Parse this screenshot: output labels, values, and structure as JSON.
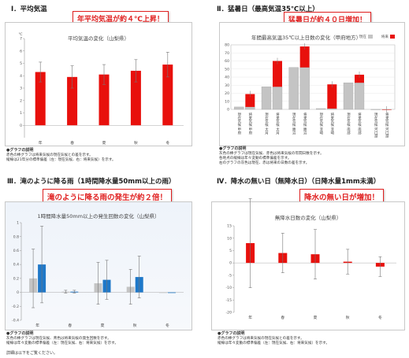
{
  "sections": [
    {
      "title": "Ⅰ．平均気温",
      "callout": "年平均気温が約４℃上昇！"
    },
    {
      "title": "Ⅱ．猛暑日（最高気温35℃以上）",
      "callout": "猛暑日が約４０日増加！"
    },
    {
      "title": "Ⅲ．滝のように降る雨（1時間降水量50mm以上の雨）",
      "callout": "滝のように降る雨の発生が約２倍！"
    },
    {
      "title": "Ⅳ．降水の無い日（無降水日）（日降水量1mm未満）",
      "callout": "降水の無い日が増加！"
    }
  ],
  "notes": [
    {
      "heading": "●グラフの説明",
      "lines": [
        "赤色の棒グラフは将来気候の現在気候との差を示す。",
        "縦線は21年分の標準偏差（左：現在気候、右：将来気候）を示す。"
      ]
    },
    {
      "heading": "●グラフの説明",
      "lines": [
        "灰色の棒グラフは現在気候、赤色は将来気候の年間日数を示す。",
        "各地点の縦線は年々変動の標準偏差を示す。",
        "右のグラフの灰色は現在、赤は将来の日数の差を示す。"
      ]
    },
    {
      "heading": "●グラフの説明",
      "lines": [
        "灰色の棒グラフは現在気候、青色は将来気候の発生回数を示す。",
        "縦線は年々変動の標準偏差（左：現在気候、右：将来気候）を示す。"
      ]
    },
    {
      "heading": "●グラフの説明",
      "lines": [
        "赤色の棒グラフは将来気候の現在気候との差を示す。",
        "縦線は年々変動の標準偏差（左：現在気候、右：将来気候）を示す。"
      ]
    }
  ],
  "footer": "詳細は以下をご覧ください。",
  "colors": {
    "red": "#e8100c",
    "blue": "#1f78c8",
    "gray": "#c4c4c4",
    "err": "#777777",
    "accent": "#e02020"
  },
  "chart_data": [
    {
      "type": "bar",
      "title": "平均気温の変化（山梨県）",
      "ylabel": "℃",
      "categories": [
        "年",
        "春",
        "夏",
        "秋",
        "冬"
      ],
      "ylim": [
        -1,
        7
      ],
      "yticks": [
        0,
        1,
        2,
        3,
        4,
        5,
        6,
        7
      ],
      "series": [
        {
          "values": [
            4.3,
            3.9,
            4.1,
            4.4,
            4.9
          ],
          "err": [
            0.8,
            0.9,
            0.8,
            0.9,
            1.0
          ],
          "color": "#e8100c"
        }
      ],
      "grid": false
    },
    {
      "type": "bar",
      "title": "年間最高気温35℃以上日数の変化（甲府地方）",
      "legend": [
        "現在",
        "将来"
      ],
      "ylim": [
        0,
        80
      ],
      "yticks": [
        0,
        10,
        20,
        30,
        40,
        50,
        60,
        70,
        80
      ],
      "stations": [
        "甲府",
        "大月",
        "勝沼",
        "韮崎",
        "南部",
        "河口湖"
      ],
      "station_labels": [
        [
          "現在気候 甲府",
          "将来気候 甲府"
        ],
        [
          "現在気候 大月",
          "将来気候 大月"
        ],
        [
          "現在気候 勝沼",
          "将来気候 勝沼"
        ],
        [
          "現在気候 韮崎",
          "将来気候 韮崎"
        ],
        [
          "現在気候 南部",
          "将来気候 南部"
        ],
        [
          "現在気候 河口湖",
          "将来気候 河口湖"
        ]
      ],
      "present": [
        3,
        28,
        52,
        1,
        33,
        0
      ],
      "future": [
        16,
        32,
        26,
        30,
        10,
        0
      ],
      "grid": true
    },
    {
      "type": "bar",
      "title": "1時間降水量50mm以上の発生回数の変化（山梨県）",
      "categories": [
        "年",
        "春",
        "夏",
        "秋",
        "冬"
      ],
      "ylim": [
        -0.4,
        1.0
      ],
      "yticks": [
        -0.4,
        -0.2,
        0,
        0.2,
        0.4,
        0.6,
        0.8,
        1.0
      ],
      "series": [
        {
          "name": "現在気候",
          "values": [
            0.2,
            0.01,
            0.13,
            0.08,
            0.0
          ],
          "err": [
            0.42,
            0.02,
            0.3,
            0.25,
            0.0
          ],
          "color": "#c4c4c4"
        },
        {
          "name": "将来気候",
          "values": [
            0.4,
            0.01,
            0.18,
            0.22,
            0.0
          ],
          "err": [
            0.55,
            0.02,
            0.28,
            0.3,
            0.0
          ],
          "color": "#1f78c8"
        }
      ],
      "grid": false
    },
    {
      "type": "bar",
      "title": "無降水日数の変化（山梨県）",
      "categories": [
        "年",
        "春",
        "夏",
        "秋",
        "冬"
      ],
      "ylim": [
        -20,
        15
      ],
      "yticks": [
        -20,
        -15,
        -10,
        -5,
        0,
        5,
        10,
        15
      ],
      "series": [
        {
          "values": [
            8,
            4,
            3.5,
            0.5,
            -1.5
          ],
          "err": [
            18,
            8,
            10,
            5,
            4
          ],
          "color": "#e8100c"
        }
      ],
      "grid": false
    }
  ]
}
